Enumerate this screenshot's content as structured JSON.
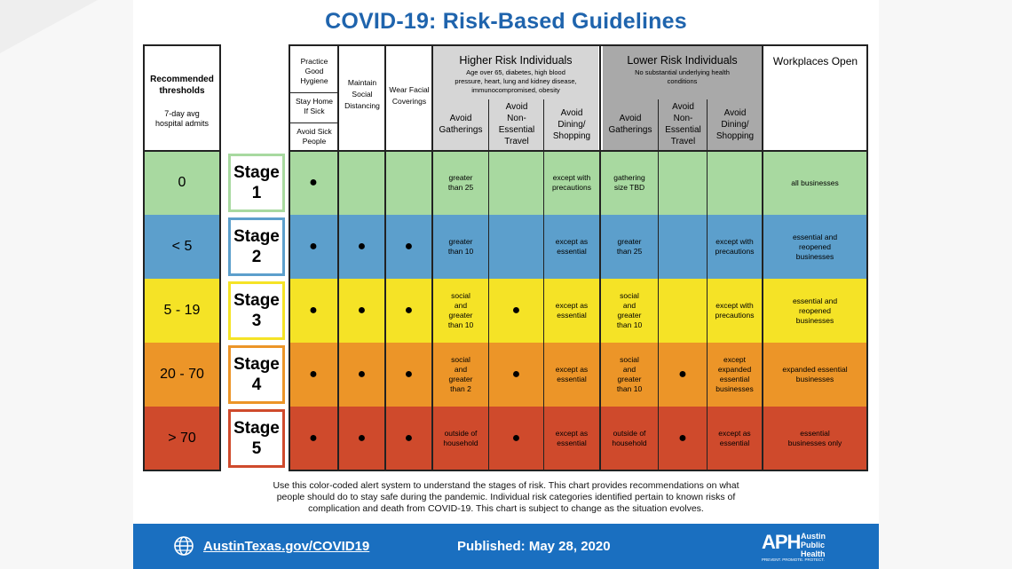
{
  "title": "COVID-19: Risk-Based Guidelines",
  "colors": {
    "title": "#1f64ad",
    "green": "#a8d9a0",
    "blue": "#5c9fcc",
    "yellow": "#f5e326",
    "orange": "#ec9528",
    "red": "#cf4a2c",
    "footer": "#1a6fc0"
  },
  "thresholds_header": {
    "title_line1": "Recommended",
    "title_line2": "thresholds",
    "sub_line1": "7-day avg",
    "sub_line2": "hospital admits"
  },
  "general_headers": {
    "practice_hygiene": [
      "Practice",
      "Good",
      "Hygiene"
    ],
    "stay_home": [
      "Stay Home",
      "If Sick"
    ],
    "avoid_sick": [
      "Avoid Sick",
      "People"
    ],
    "social_distancing": [
      "Maintain",
      "Social",
      "Distancing"
    ],
    "face_coverings": [
      "Wear Facial",
      "Coverings"
    ]
  },
  "higher_risk": {
    "title": "Higher Risk Individuals",
    "desc_line1": "Age over 65, diabetes, high blood",
    "desc_line2": "pressure, heart, lung and kidney disease,",
    "desc_line3": "immunocompromised, obesity",
    "col_gatherings": [
      "Avoid",
      "Gatherings"
    ],
    "col_travel": [
      "Avoid",
      "Non-",
      "Essential",
      "Travel"
    ],
    "col_dining": [
      "Avoid",
      "Dining/",
      "Shopping"
    ]
  },
  "lower_risk": {
    "title": "Lower Risk Individuals",
    "desc_line1": "No substantial underlying health",
    "desc_line2": "conditions",
    "col_gatherings": [
      "Avoid",
      "Gatherings"
    ],
    "col_travel": [
      "Avoid",
      "Non-",
      "Essential",
      "Travel"
    ],
    "col_dining": [
      "Avoid",
      "Dining/",
      "Shopping"
    ]
  },
  "workplaces_header": "Workplaces Open",
  "dot": "●",
  "rows": [
    {
      "threshold": "0",
      "stage_word": "Stage",
      "stage_num": "1",
      "hr_gatherings": [
        "greater",
        "than 25"
      ],
      "hr_dining": [
        "except with",
        "precautions"
      ],
      "lr_gatherings": [
        "gathering",
        "size TBD"
      ],
      "workplaces": [
        "all businesses"
      ]
    },
    {
      "threshold": "< 5",
      "stage_word": "Stage",
      "stage_num": "2",
      "hr_gatherings": [
        "greater",
        "than 10"
      ],
      "hr_dining": [
        "except as",
        "essential"
      ],
      "lr_gatherings": [
        "greater",
        "than 25"
      ],
      "lr_dining": [
        "except with",
        "precautions"
      ],
      "workplaces": [
        "essential and",
        "reopened",
        "businesses"
      ]
    },
    {
      "threshold": "5 - 19",
      "stage_word": "Stage",
      "stage_num": "3",
      "hr_gatherings": [
        "social",
        "and",
        "greater",
        "than 10"
      ],
      "hr_dining": [
        "except as",
        "essential"
      ],
      "lr_gatherings": [
        "social",
        "and",
        "greater",
        "than 10"
      ],
      "lr_dining": [
        "except with",
        "precautions"
      ],
      "workplaces": [
        "essential and",
        "reopened",
        "businesses"
      ]
    },
    {
      "threshold": "20 - 70",
      "stage_word": "Stage",
      "stage_num": "4",
      "hr_gatherings": [
        "social",
        "and",
        "greater",
        "than 2"
      ],
      "hr_dining": [
        "except as",
        "essential"
      ],
      "lr_gatherings": [
        "social",
        "and",
        "greater",
        "than 10"
      ],
      "lr_dining": [
        "except",
        "expanded",
        "essential",
        "businesses"
      ],
      "workplaces": [
        "expanded essential",
        "businesses"
      ]
    },
    {
      "threshold": "> 70",
      "stage_word": "Stage",
      "stage_num": "5",
      "hr_gatherings": [
        "outside of",
        "household"
      ],
      "hr_dining": [
        "except as",
        "essential"
      ],
      "lr_gatherings": [
        "outside of",
        "household"
      ],
      "lr_dining": [
        "except as",
        "essential"
      ],
      "workplaces": [
        "essential",
        "businesses only"
      ]
    }
  ],
  "footnote": {
    "line1": "Use this color-coded alert system to understand the stages of risk. This chart provides recommendations on what",
    "line2": "people should do to stay safe during the pandemic. Individual risk categories identified pertain to known risks of",
    "line3": "complication and death from COVID-19. This chart is subject to change as the situation evolves."
  },
  "footer": {
    "url": "AustinTexas.gov/COVID19",
    "published": "Published: May 28, 2020",
    "logo_letters": "APH",
    "logo_name_line1": "Austin",
    "logo_name_line2": "Public",
    "logo_name_line3": "Health",
    "logo_tagline": "PREVENT. PROMOTE. PROTECT.",
    "globe_icon": "globe-icon"
  }
}
